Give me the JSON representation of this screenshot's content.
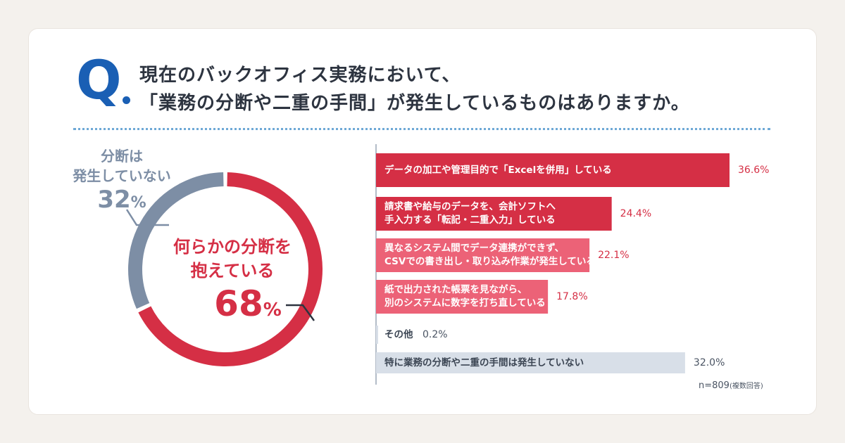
{
  "question": {
    "mark": "Q",
    "line1": "現在のバックオフィス実務において、",
    "line2": "「業務の分断や二重の手間」が発生しているものはありますか。"
  },
  "colors": {
    "accent_blue": "#1a5fb4",
    "red": "#d52f45",
    "pink": "#ec6277",
    "gray_blue": "#7d8ea5",
    "light_gray": "#d8dfe8"
  },
  "chart_data": [
    {
      "type": "pie",
      "slices": [
        {
          "name": "何らかの分断を抱えている",
          "value": 68,
          "color": "#d52f45"
        },
        {
          "name": "分断は発生していない",
          "value": 32,
          "color": "#7d8ea5"
        }
      ],
      "labels": {
        "yes_line1": "何らかの分断を",
        "yes_line2": "抱えている",
        "yes_value": "68",
        "no_line1": "分断は",
        "no_line2": "発生していない",
        "no_value": "32",
        "pct_sign": "%"
      }
    },
    {
      "type": "bar",
      "orientation": "horizontal",
      "xlim": [
        0,
        60
      ],
      "categories": [
        [
          "データの加工や管理目的で「Excelを併用」している"
        ],
        [
          "請求書や給与のデータを、会計ソフトへ",
          "手入力する「転記・二重入力」している"
        ],
        [
          "異なるシステム間でデータ連携ができず、",
          "CSVでの書き出し・取り込み作業が発生している"
        ],
        [
          "紙で出力された帳票を見ながら、",
          "別のシステムに数字を打ち直している"
        ],
        [
          "その他"
        ],
        [
          "特に業務の分断や二重の手間は発生していない"
        ]
      ],
      "values": [
        36.6,
        24.4,
        22.1,
        17.8,
        0.2,
        32.0
      ],
      "value_labels": [
        "36.6%",
        "24.4%",
        "22.1%",
        "17.8%",
        "0.2%",
        "32.0%"
      ],
      "bar_colors": [
        "#d52f45",
        "#d52f45",
        "#ec6277",
        "#ec6277",
        "#d8dfe8",
        "#d8dfe8"
      ],
      "note": "n=809",
      "note_small": "(複数回答)"
    }
  ]
}
